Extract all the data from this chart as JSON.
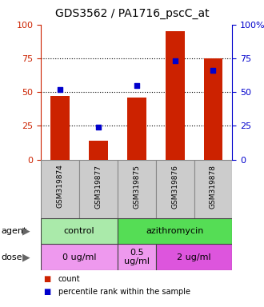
{
  "title": "GDS3562 / PA1716_pscC_at",
  "samples": [
    "GSM319874",
    "GSM319877",
    "GSM319875",
    "GSM319876",
    "GSM319878"
  ],
  "bar_heights": [
    47,
    14,
    46,
    95,
    75
  ],
  "percentile_ranks": [
    52,
    24,
    55,
    73,
    66
  ],
  "bar_color": "#cc2200",
  "dot_color": "#0000cc",
  "ylim": [
    0,
    100
  ],
  "yticks": [
    0,
    25,
    50,
    75,
    100
  ],
  "grid_lines": [
    25,
    50,
    75
  ],
  "agent_row": [
    {
      "label": "control",
      "span": [
        0,
        2
      ],
      "color": "#aaeaaa"
    },
    {
      "label": "azithromycin",
      "span": [
        2,
        5
      ],
      "color": "#55dd55"
    }
  ],
  "dose_row": [
    {
      "label": "0 ug/ml",
      "span": [
        0,
        2
      ],
      "color": "#ee99ee"
    },
    {
      "label": "0.5\nug/ml",
      "span": [
        2,
        3
      ],
      "color": "#ee99ee"
    },
    {
      "label": "2 ug/ml",
      "span": [
        3,
        5
      ],
      "color": "#dd55dd"
    }
  ],
  "left_axis_color": "#cc2200",
  "right_axis_color": "#0000cc",
  "legend_items": [
    {
      "color": "#cc2200",
      "label": "count"
    },
    {
      "color": "#0000cc",
      "label": "percentile rank within the sample"
    }
  ],
  "bar_width": 0.5,
  "sample_box_color": "#cccccc",
  "sample_box_edge": "#888888",
  "background_color": "#ffffff",
  "title_fontsize": 10,
  "tick_fontsize": 8,
  "sample_fontsize": 6.5,
  "row_fontsize": 8,
  "legend_fontsize": 7,
  "label_fontsize": 8
}
